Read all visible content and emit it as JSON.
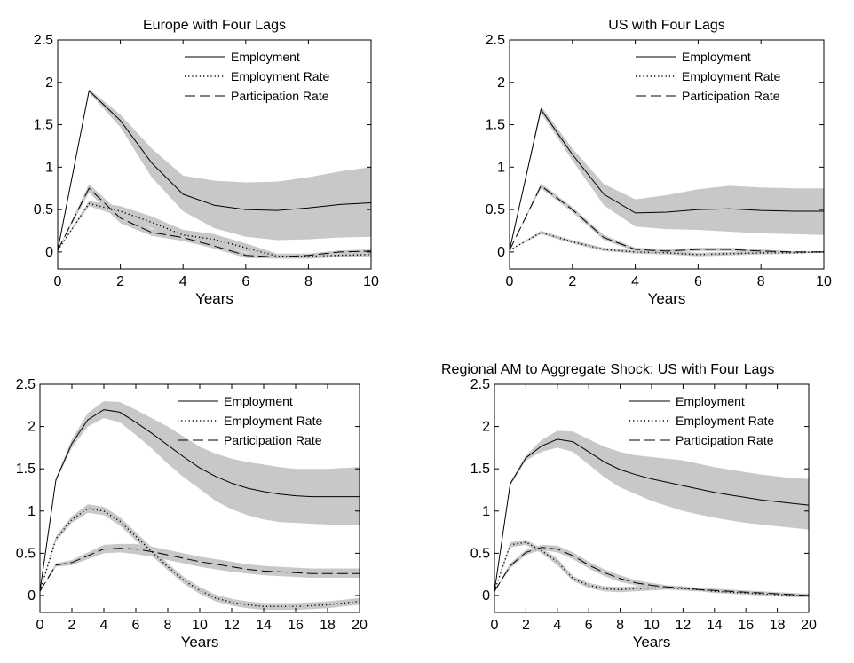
{
  "chart_data": [
    {
      "type": "line",
      "title": "Europe with Four Lags",
      "xlabel": "Years",
      "ylabel": "",
      "xlim": [
        0,
        10
      ],
      "ylim": [
        -0.2,
        2.5
      ],
      "xticks": [
        0,
        2,
        4,
        6,
        8,
        10
      ],
      "yticks": [
        0,
        0.5,
        1,
        1.5,
        2,
        2.5
      ],
      "ytick_labels": [
        "0",
        "0.5",
        "1",
        "1.5",
        "2",
        "2.5"
      ],
      "legend_position": "top-right",
      "band_color": "#c8c8c8",
      "x": [
        0,
        1,
        2,
        3,
        4,
        5,
        6,
        7,
        8,
        9,
        10
      ],
      "series": [
        {
          "name": "Employment",
          "style": "solid",
          "values": [
            0.02,
            1.9,
            1.55,
            1.05,
            0.68,
            0.55,
            0.5,
            0.49,
            0.52,
            0.56,
            0.58
          ],
          "band_lower": [
            0.02,
            1.88,
            1.47,
            0.88,
            0.48,
            0.28,
            0.18,
            0.14,
            0.15,
            0.17,
            0.18
          ],
          "band_upper": [
            0.02,
            1.92,
            1.62,
            1.22,
            0.9,
            0.84,
            0.82,
            0.83,
            0.88,
            0.95,
            1.0
          ]
        },
        {
          "name": "Employment Rate",
          "style": "dotted",
          "values": [
            0.02,
            0.57,
            0.48,
            0.35,
            0.2,
            0.15,
            0.05,
            -0.05,
            -0.05,
            -0.04,
            -0.03
          ],
          "band_lower": [
            0.02,
            0.54,
            0.42,
            0.28,
            0.14,
            0.09,
            0.0,
            -0.08,
            -0.08,
            -0.06,
            -0.05
          ],
          "band_upper": [
            0.02,
            0.6,
            0.54,
            0.42,
            0.26,
            0.21,
            0.1,
            -0.02,
            -0.02,
            -0.01,
            0.0
          ]
        },
        {
          "name": "Participation Rate",
          "style": "dashed",
          "values": [
            0.02,
            0.75,
            0.4,
            0.23,
            0.17,
            0.07,
            -0.04,
            -0.06,
            -0.04,
            0.0,
            0.01
          ],
          "band_lower": [
            0.02,
            0.7,
            0.34,
            0.19,
            0.13,
            0.04,
            -0.07,
            -0.08,
            -0.06,
            -0.02,
            -0.01
          ],
          "band_upper": [
            0.02,
            0.8,
            0.46,
            0.27,
            0.21,
            0.1,
            -0.01,
            -0.04,
            -0.02,
            0.02,
            0.03
          ]
        }
      ]
    },
    {
      "type": "line",
      "title": "US with Four Lags",
      "xlabel": "Years",
      "ylabel": "",
      "xlim": [
        0,
        10
      ],
      "ylim": [
        -0.2,
        2.5
      ],
      "xticks": [
        0,
        2,
        4,
        6,
        8,
        10
      ],
      "yticks": [
        0,
        0.5,
        1,
        1.5,
        2,
        2.5
      ],
      "ytick_labels": [
        "0",
        "0.5",
        "1",
        "1.5",
        "2",
        "2.5"
      ],
      "legend_position": "top-right",
      "band_color": "#c8c8c8",
      "x": [
        0,
        1,
        2,
        3,
        4,
        5,
        6,
        7,
        8,
        9,
        10
      ],
      "series": [
        {
          "name": "Employment",
          "style": "solid",
          "values": [
            0.02,
            1.68,
            1.15,
            0.68,
            0.46,
            0.47,
            0.5,
            0.51,
            0.49,
            0.48,
            0.48
          ],
          "band_lower": [
            0.02,
            1.64,
            1.08,
            0.55,
            0.3,
            0.27,
            0.26,
            0.24,
            0.22,
            0.21,
            0.2
          ],
          "band_upper": [
            0.02,
            1.72,
            1.22,
            0.8,
            0.62,
            0.67,
            0.74,
            0.78,
            0.76,
            0.75,
            0.75
          ]
        },
        {
          "name": "Employment Rate",
          "style": "dotted",
          "values": [
            0.02,
            0.23,
            0.12,
            0.03,
            0.0,
            -0.01,
            -0.03,
            -0.02,
            -0.01,
            -0.01,
            0.0
          ],
          "band_lower": [
            0.02,
            0.21,
            0.1,
            0.01,
            -0.02,
            -0.03,
            -0.05,
            -0.04,
            -0.03,
            -0.02,
            -0.01
          ],
          "band_upper": [
            0.02,
            0.25,
            0.14,
            0.05,
            0.02,
            0.01,
            -0.01,
            0.0,
            0.01,
            0.0,
            0.01
          ]
        },
        {
          "name": "Participation Rate",
          "style": "dashed",
          "values": [
            0.02,
            0.78,
            0.5,
            0.17,
            0.03,
            0.01,
            0.03,
            0.03,
            0.01,
            0.0,
            0.0
          ],
          "band_lower": [
            0.02,
            0.75,
            0.47,
            0.14,
            0.01,
            -0.01,
            0.01,
            0.01,
            -0.01,
            -0.01,
            -0.01
          ],
          "band_upper": [
            0.02,
            0.81,
            0.53,
            0.2,
            0.05,
            0.03,
            0.05,
            0.05,
            0.03,
            0.01,
            0.01
          ]
        }
      ]
    },
    {
      "type": "line",
      "title": "",
      "xlabel": "Years",
      "ylabel": "",
      "xlim": [
        0,
        20
      ],
      "ylim": [
        -0.2,
        2.5
      ],
      "xticks": [
        0,
        2,
        4,
        6,
        8,
        10,
        12,
        14,
        16,
        18,
        20
      ],
      "yticks": [
        0,
        0.5,
        1,
        1.5,
        2,
        2.5
      ],
      "ytick_labels": [
        "0",
        "0.5",
        "1",
        "1.5",
        "2",
        "2.5"
      ],
      "legend_position": "top-right",
      "band_color": "#c8c8c8",
      "x": [
        0,
        1,
        2,
        3,
        4,
        5,
        6,
        7,
        8,
        9,
        10,
        11,
        12,
        13,
        14,
        15,
        16,
        17,
        18,
        19,
        20
      ],
      "series": [
        {
          "name": "Employment",
          "style": "solid",
          "values": [
            0.05,
            1.37,
            1.8,
            2.08,
            2.2,
            2.17,
            2.05,
            1.92,
            1.78,
            1.64,
            1.51,
            1.41,
            1.33,
            1.27,
            1.23,
            1.2,
            1.18,
            1.17,
            1.17,
            1.17,
            1.17
          ],
          "band_lower": [
            0.05,
            1.35,
            1.75,
            2.0,
            2.1,
            2.05,
            1.9,
            1.74,
            1.56,
            1.4,
            1.26,
            1.12,
            1.02,
            0.95,
            0.9,
            0.87,
            0.86,
            0.85,
            0.84,
            0.84,
            0.84
          ],
          "band_upper": [
            0.05,
            1.39,
            1.85,
            2.16,
            2.3,
            2.29,
            2.2,
            2.1,
            2.0,
            1.88,
            1.76,
            1.68,
            1.62,
            1.58,
            1.55,
            1.52,
            1.5,
            1.5,
            1.5,
            1.51,
            1.52
          ]
        },
        {
          "name": "Employment Rate",
          "style": "dotted",
          "values": [
            0.05,
            0.67,
            0.9,
            1.03,
            1.0,
            0.88,
            0.7,
            0.52,
            0.34,
            0.18,
            0.06,
            -0.03,
            -0.08,
            -0.11,
            -0.13,
            -0.13,
            -0.13,
            -0.12,
            -0.11,
            -0.09,
            -0.07
          ],
          "band_lower": [
            0.05,
            0.64,
            0.86,
            0.98,
            0.95,
            0.83,
            0.65,
            0.47,
            0.3,
            0.14,
            0.02,
            -0.07,
            -0.12,
            -0.15,
            -0.17,
            -0.17,
            -0.17,
            -0.16,
            -0.15,
            -0.13,
            -0.11
          ],
          "band_upper": [
            0.05,
            0.7,
            0.94,
            1.08,
            1.05,
            0.93,
            0.75,
            0.57,
            0.38,
            0.22,
            0.1,
            0.01,
            -0.04,
            -0.07,
            -0.09,
            -0.09,
            -0.09,
            -0.08,
            -0.07,
            -0.05,
            -0.03
          ]
        },
        {
          "name": "Participation Rate",
          "style": "dashed",
          "values": [
            0.05,
            0.36,
            0.39,
            0.47,
            0.55,
            0.56,
            0.55,
            0.52,
            0.48,
            0.44,
            0.4,
            0.37,
            0.34,
            0.31,
            0.29,
            0.28,
            0.27,
            0.26,
            0.26,
            0.26,
            0.26
          ],
          "band_lower": [
            0.05,
            0.34,
            0.36,
            0.43,
            0.5,
            0.51,
            0.49,
            0.46,
            0.42,
            0.38,
            0.34,
            0.31,
            0.28,
            0.26,
            0.24,
            0.23,
            0.22,
            0.21,
            0.21,
            0.21,
            0.21
          ],
          "band_upper": [
            0.05,
            0.38,
            0.42,
            0.51,
            0.6,
            0.61,
            0.61,
            0.58,
            0.54,
            0.5,
            0.46,
            0.43,
            0.4,
            0.37,
            0.35,
            0.34,
            0.33,
            0.32,
            0.32,
            0.32,
            0.32
          ]
        }
      ]
    },
    {
      "type": "line",
      "title": "Regional AM to Aggregate Shock: US with Four Lags",
      "xlabel": "Years",
      "ylabel": "",
      "xlim": [
        0,
        20
      ],
      "ylim": [
        -0.2,
        2.5
      ],
      "xticks": [
        0,
        2,
        4,
        6,
        8,
        10,
        12,
        14,
        16,
        18,
        20
      ],
      "yticks": [
        0,
        0.5,
        1,
        1.5,
        2,
        2.5
      ],
      "ytick_labels": [
        "0",
        "0.5",
        "1",
        "1.5",
        "2",
        "2.5"
      ],
      "legend_position": "top-right",
      "band_color": "#c8c8c8",
      "x": [
        0,
        1,
        2,
        3,
        4,
        5,
        6,
        7,
        8,
        9,
        10,
        11,
        12,
        13,
        14,
        15,
        16,
        17,
        18,
        19,
        20
      ],
      "series": [
        {
          "name": "Employment",
          "style": "solid",
          "values": [
            0.05,
            1.32,
            1.63,
            1.77,
            1.85,
            1.82,
            1.7,
            1.58,
            1.49,
            1.43,
            1.38,
            1.34,
            1.3,
            1.26,
            1.22,
            1.19,
            1.16,
            1.13,
            1.11,
            1.09,
            1.07
          ],
          "band_lower": [
            0.05,
            1.3,
            1.6,
            1.7,
            1.75,
            1.7,
            1.55,
            1.4,
            1.28,
            1.2,
            1.12,
            1.06,
            1.0,
            0.96,
            0.92,
            0.89,
            0.86,
            0.84,
            0.82,
            0.8,
            0.78
          ],
          "band_upper": [
            0.05,
            1.34,
            1.66,
            1.84,
            1.95,
            1.94,
            1.85,
            1.76,
            1.7,
            1.66,
            1.64,
            1.62,
            1.6,
            1.56,
            1.52,
            1.49,
            1.46,
            1.43,
            1.41,
            1.39,
            1.38
          ]
        },
        {
          "name": "Employment Rate",
          "style": "dotted",
          "values": [
            0.05,
            0.6,
            0.63,
            0.53,
            0.4,
            0.2,
            0.12,
            0.08,
            0.07,
            0.08,
            0.09,
            0.09,
            0.08,
            0.07,
            0.05,
            0.04,
            0.03,
            0.02,
            0.01,
            0.0,
            0.0
          ],
          "band_lower": [
            0.05,
            0.57,
            0.6,
            0.5,
            0.36,
            0.17,
            0.09,
            0.05,
            0.04,
            0.05,
            0.06,
            0.07,
            0.06,
            0.05,
            0.03,
            0.02,
            0.01,
            0.0,
            -0.01,
            -0.02,
            -0.02
          ],
          "band_upper": [
            0.05,
            0.63,
            0.66,
            0.56,
            0.44,
            0.23,
            0.15,
            0.11,
            0.1,
            0.11,
            0.12,
            0.11,
            0.1,
            0.09,
            0.07,
            0.06,
            0.05,
            0.04,
            0.03,
            0.02,
            0.02
          ]
        },
        {
          "name": "Participation Rate",
          "style": "dashed",
          "values": [
            0.05,
            0.35,
            0.51,
            0.57,
            0.55,
            0.47,
            0.36,
            0.27,
            0.2,
            0.15,
            0.12,
            0.1,
            0.09,
            0.07,
            0.06,
            0.05,
            0.04,
            0.03,
            0.02,
            0.01,
            0.0
          ],
          "band_lower": [
            0.05,
            0.32,
            0.48,
            0.54,
            0.51,
            0.43,
            0.32,
            0.23,
            0.16,
            0.12,
            0.09,
            0.08,
            0.07,
            0.05,
            0.04,
            0.03,
            0.02,
            0.01,
            0.0,
            -0.01,
            -0.02
          ],
          "band_upper": [
            0.05,
            0.38,
            0.54,
            0.6,
            0.59,
            0.51,
            0.4,
            0.31,
            0.24,
            0.18,
            0.15,
            0.12,
            0.11,
            0.09,
            0.08,
            0.07,
            0.06,
            0.05,
            0.04,
            0.03,
            0.02
          ]
        }
      ]
    }
  ]
}
